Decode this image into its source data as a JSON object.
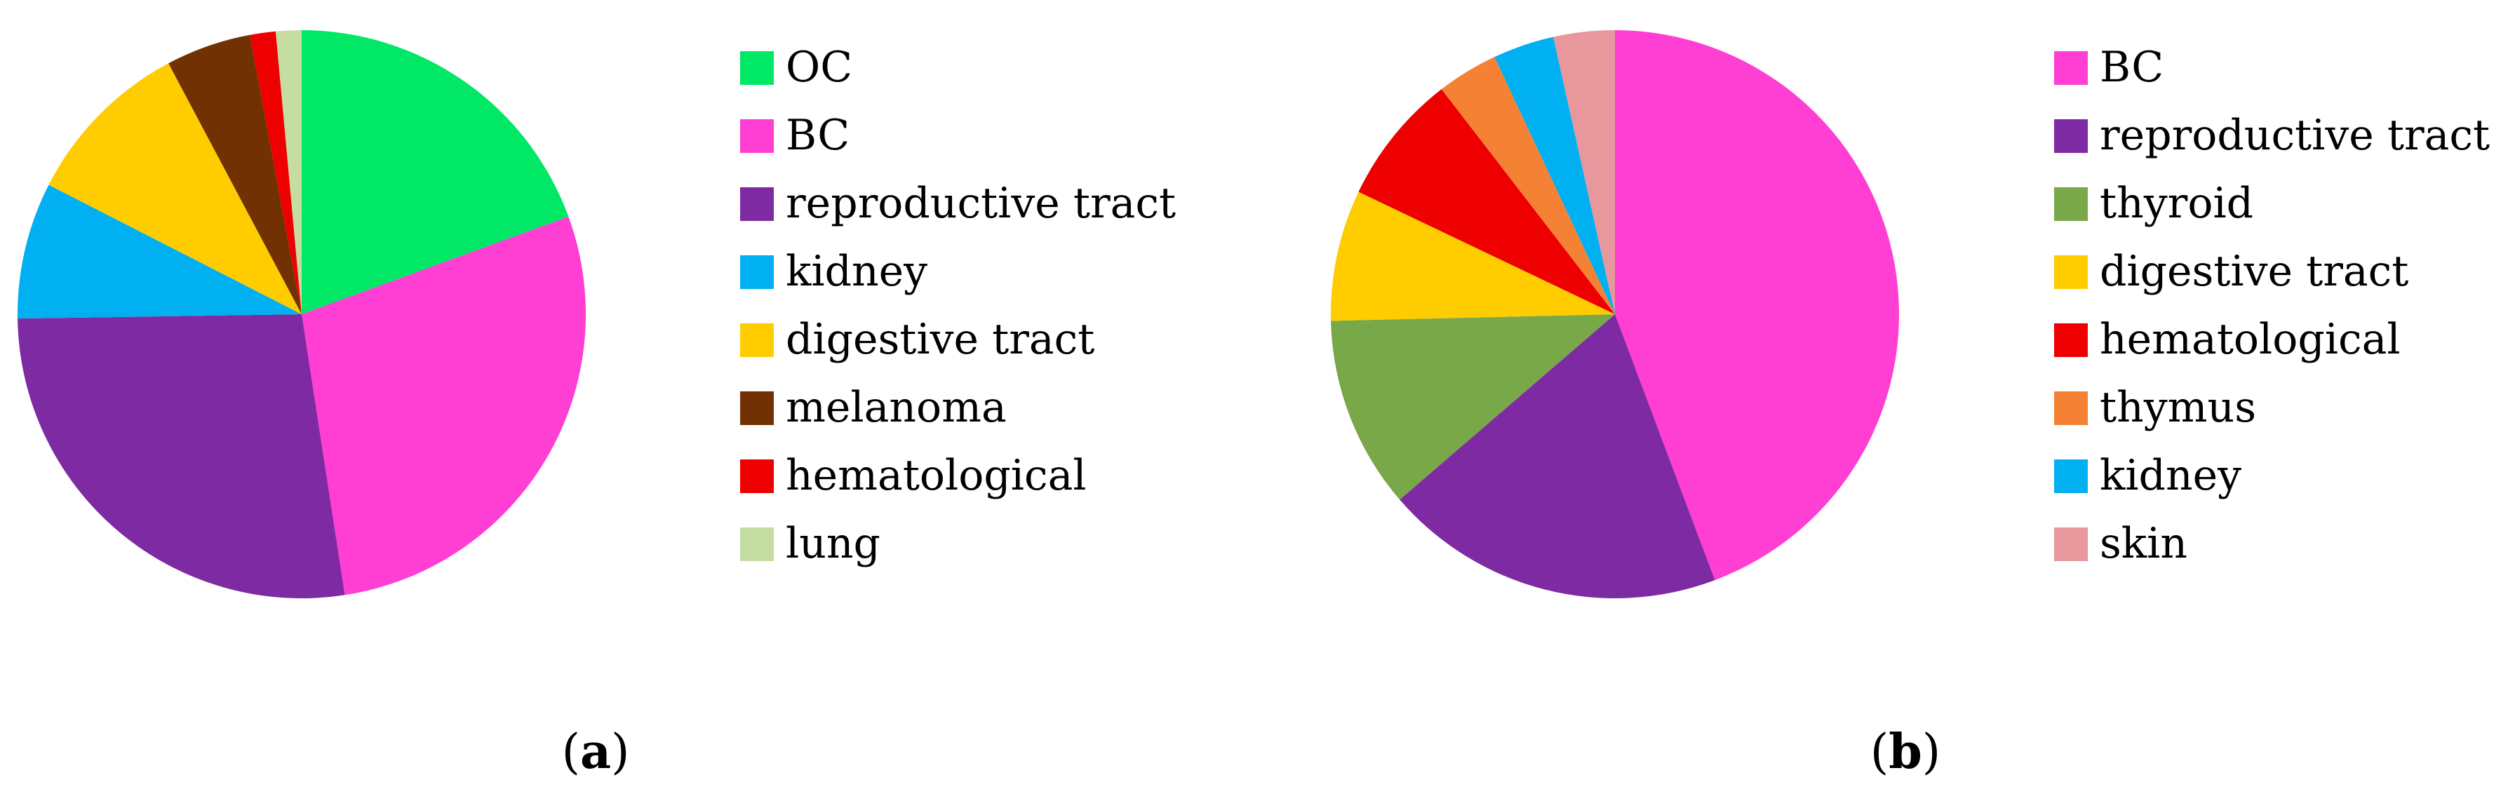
{
  "chart_data": [
    {
      "type": "pie",
      "panel_label": "a",
      "categories": [
        "OC",
        "BC",
        "reproductive tract",
        "kidney",
        "digestive tract",
        "melanoma",
        "hematological",
        "lung"
      ],
      "values": [
        20,
        29,
        28,
        8,
        10,
        5,
        1.5,
        1.5
      ],
      "colors": [
        "#00E865",
        "#FF3ED3",
        "#7E2AA2",
        "#00B0F0",
        "#FFCC00",
        "#713102",
        "#EE0000",
        "#C6DDA2"
      ],
      "start_angle_deg": 0,
      "direction": "clockwise",
      "legend_position": "right"
    },
    {
      "type": "pie",
      "panel_label": "b",
      "categories": [
        "BC",
        "reproductive tract",
        "thyroid",
        "digestive tract",
        "hematological",
        "thymus",
        "kidney",
        "skin"
      ],
      "values": [
        44.5,
        19.5,
        11,
        7.5,
        7.5,
        3.5,
        3.5,
        3.5
      ],
      "colors": [
        "#FF3ED3",
        "#7E2AA2",
        "#78A847",
        "#FFCC00",
        "#EE0000",
        "#F58234",
        "#00B0F0",
        "#E8979C"
      ],
      "start_angle_deg": 0,
      "direction": "clockwise",
      "legend_position": "right"
    }
  ]
}
